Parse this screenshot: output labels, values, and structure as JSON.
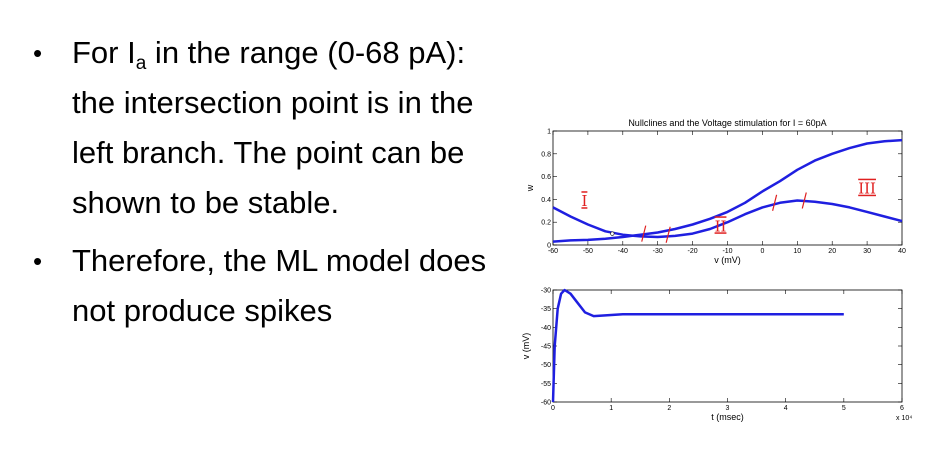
{
  "bullets": [
    {
      "before_sub": "For I",
      "sub": "a",
      "after_sub": " in the range (0-68 pA): the intersection point is in the left branch. The point can be shown to be stable."
    },
    {
      "text": "Therefore, the  ML model does not produce spikes"
    }
  ],
  "bullet_glyph": "•",
  "chart_data": [
    {
      "type": "line",
      "title": "Nullclines and the Voltage stimulation for I = 60pA",
      "xlabel": "v (mV)",
      "ylabel": "w",
      "xlim": [
        -60,
        40
      ],
      "ylim": [
        0,
        1
      ],
      "xticks": [
        -60,
        -50,
        -40,
        -30,
        -20,
        -10,
        0,
        10,
        20,
        30,
        40
      ],
      "yticks": [
        0,
        0.2,
        0.4,
        0.6,
        0.8,
        1
      ],
      "color": "#1f1fe0",
      "series": [
        {
          "x": [
            -60,
            -55,
            -50,
            -45,
            -40,
            -35,
            -30,
            -25,
            -20,
            -15,
            -10,
            -5,
            0,
            5,
            10,
            15,
            20,
            25,
            30,
            35,
            40
          ],
          "y": [
            0.03,
            0.04,
            0.045,
            0.055,
            0.07,
            0.09,
            0.11,
            0.14,
            0.18,
            0.23,
            0.29,
            0.37,
            0.47,
            0.56,
            0.66,
            0.74,
            0.8,
            0.85,
            0.89,
            0.91,
            0.92
          ]
        },
        {
          "x": [
            -60,
            -55,
            -50,
            -45,
            -40,
            -35,
            -30,
            -25,
            -20,
            -15,
            -10,
            -5,
            0,
            5,
            10,
            15,
            20,
            25,
            30,
            35,
            40
          ],
          "y": [
            0.33,
            0.25,
            0.18,
            0.12,
            0.09,
            0.075,
            0.07,
            0.08,
            0.1,
            0.14,
            0.2,
            0.27,
            0.33,
            0.37,
            0.39,
            0.38,
            0.36,
            0.33,
            0.29,
            0.25,
            0.21
          ]
        }
      ],
      "fixed_point": {
        "x": -43,
        "y": 0.1
      },
      "annotations": [
        {
          "text": "I",
          "x": -51,
          "y": 0.34,
          "color": "#e02020"
        },
        {
          "text": "II",
          "x": -12,
          "y": 0.12,
          "color": "#e02020"
        },
        {
          "text": "III",
          "x": 30,
          "y": 0.45,
          "color": "#e02020"
        }
      ]
    },
    {
      "type": "line",
      "xlabel": "t (msec)",
      "ylabel": "v (mV)",
      "xlim": [
        0,
        6
      ],
      "ylim": [
        -60,
        -30
      ],
      "xticks": [
        0,
        1,
        2,
        3,
        4,
        5,
        6
      ],
      "yticks": [
        -60,
        -55,
        -50,
        -45,
        -40,
        -35,
        -30
      ],
      "x_multiplier": "x 10⁴",
      "color": "#1f1fe0",
      "series": [
        {
          "x": [
            0,
            0.03,
            0.08,
            0.14,
            0.2,
            0.3,
            0.4,
            0.55,
            0.7,
            0.9,
            1.2,
            1.5,
            3,
            5
          ],
          "y": [
            -60,
            -45,
            -35,
            -31,
            -30,
            -31,
            -33,
            -36,
            -37,
            -36.8,
            -36.5,
            -36.5,
            -36.5,
            -36.5
          ]
        }
      ]
    }
  ]
}
